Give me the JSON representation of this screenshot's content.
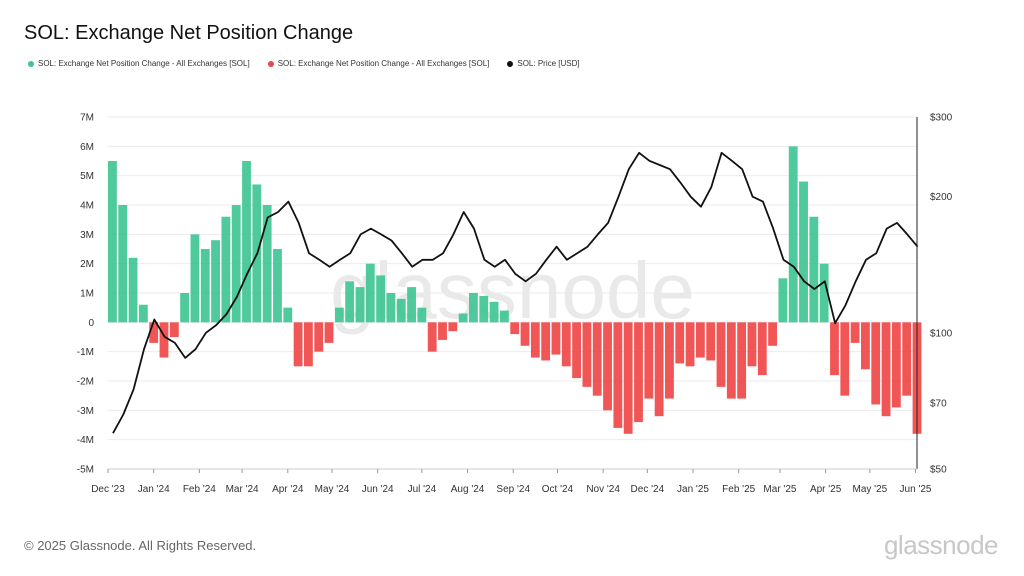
{
  "title": "SOL: Exchange Net Position Change",
  "legend": [
    {
      "label": "SOL: Exchange Net Position Change - All Exchanges [SOL]",
      "color": "#3cc491"
    },
    {
      "label": "SOL: Exchange Net Position Change - All Exchanges [SOL]",
      "color": "#ef4444"
    },
    {
      "label": "SOL: Price [USD]",
      "color": "#111111"
    }
  ],
  "footer": {
    "copyright": "© 2025 Glassnode. All Rights Reserved.",
    "logo": "glassnode"
  },
  "watermark": "glassnode",
  "colors": {
    "positive": "#3cc491",
    "negative": "#ef4444",
    "price": "#111111",
    "grid": "#ebebeb"
  },
  "chart_data": {
    "type": "bar",
    "title": "SOL: Exchange Net Position Change",
    "x_tick_labels": [
      "Dec '23",
      "Jan '24",
      "Feb '24",
      "Mar '24",
      "Apr '24",
      "May '24",
      "Jun '24",
      "Jul '24",
      "Aug '24",
      "Sep '24",
      "Oct '24",
      "Nov '24",
      "Dec '24",
      "Jan '25",
      "Feb '25",
      "Mar '25",
      "Apr '25",
      "May '25",
      "Jun '25"
    ],
    "x_range": [
      "2023-12-01",
      "2025-06-02"
    ],
    "y_left": {
      "ticks": [
        "7M",
        "6M",
        "5M",
        "4M",
        "3M",
        "2M",
        "1M",
        "0",
        "-1M",
        "-2M",
        "-3M",
        "-4M",
        "-5M"
      ],
      "ylim": [
        -5,
        7
      ],
      "unit": "M SOL"
    },
    "y_right": {
      "ticks": [
        "$300",
        "$200",
        "$100",
        "$70",
        "$50"
      ],
      "tick_values": [
        300,
        200,
        100,
        70,
        50
      ],
      "scale": "log",
      "ylim": [
        50,
        300
      ]
    },
    "series": [
      {
        "name": "SOL: Exchange Net Position Change - All Exchanges [SOL]",
        "kind": "bar",
        "unit": "M SOL",
        "x": [
          "2023-12-01",
          "2023-12-08",
          "2023-12-15",
          "2023-12-22",
          "2023-12-29",
          "2024-01-05",
          "2024-01-12",
          "2024-01-19",
          "2024-01-26",
          "2024-02-02",
          "2024-02-09",
          "2024-02-16",
          "2024-02-23",
          "2024-03-01",
          "2024-03-08",
          "2024-03-15",
          "2024-03-22",
          "2024-03-29",
          "2024-04-05",
          "2024-04-12",
          "2024-04-19",
          "2024-04-26",
          "2024-05-03",
          "2024-05-10",
          "2024-05-17",
          "2024-05-24",
          "2024-05-31",
          "2024-06-07",
          "2024-06-14",
          "2024-06-21",
          "2024-06-28",
          "2024-07-05",
          "2024-07-12",
          "2024-07-19",
          "2024-07-26",
          "2024-08-02",
          "2024-08-09",
          "2024-08-16",
          "2024-08-23",
          "2024-08-30",
          "2024-09-06",
          "2024-09-13",
          "2024-09-20",
          "2024-09-27",
          "2024-10-04",
          "2024-10-11",
          "2024-10-18",
          "2024-10-25",
          "2024-11-01",
          "2024-11-08",
          "2024-11-15",
          "2024-11-22",
          "2024-11-29",
          "2024-12-06",
          "2024-12-13",
          "2024-12-20",
          "2024-12-27",
          "2025-01-03",
          "2025-01-10",
          "2025-01-17",
          "2025-01-24",
          "2025-01-31",
          "2025-02-07",
          "2025-02-14",
          "2025-02-21",
          "2025-02-28",
          "2025-03-07",
          "2025-03-14",
          "2025-03-21",
          "2025-03-28",
          "2025-04-04",
          "2025-04-11",
          "2025-04-18",
          "2025-04-25",
          "2025-05-02",
          "2025-05-09",
          "2025-05-16",
          "2025-05-23",
          "2025-05-30"
        ],
        "values": [
          5.5,
          4.0,
          2.2,
          0.6,
          -0.7,
          -1.2,
          -0.5,
          1.0,
          3.0,
          2.5,
          2.8,
          3.6,
          4.0,
          5.5,
          4.7,
          4.0,
          2.5,
          0.5,
          -1.5,
          -1.5,
          -1.0,
          -0.7,
          0.5,
          1.4,
          1.2,
          2.0,
          1.6,
          1.0,
          0.8,
          1.2,
          0.5,
          -1.0,
          -0.6,
          -0.3,
          0.3,
          1.0,
          0.9,
          0.7,
          0.4,
          -0.4,
          -0.8,
          -1.2,
          -1.3,
          -1.1,
          -1.5,
          -1.9,
          -2.2,
          -2.5,
          -3.0,
          -3.6,
          -3.8,
          -3.4,
          -2.6,
          -3.2,
          -2.6,
          -1.4,
          -1.5,
          -1.2,
          -1.3,
          -2.2,
          -2.6,
          -2.6,
          -1.5,
          -1.8,
          -0.8,
          1.5,
          6.0,
          4.8,
          3.6,
          2.0,
          -1.8,
          -2.5,
          -0.7,
          -1.6,
          -2.8,
          -3.2,
          -2.9,
          -2.5,
          -3.8
        ]
      },
      {
        "name": "SOL: Price [USD]",
        "kind": "line",
        "axis": "right",
        "unit": "USD",
        "x": [
          "2023-12-01",
          "2023-12-08",
          "2023-12-15",
          "2023-12-22",
          "2023-12-29",
          "2024-01-05",
          "2024-01-12",
          "2024-01-19",
          "2024-01-26",
          "2024-02-02",
          "2024-02-09",
          "2024-02-16",
          "2024-02-23",
          "2024-03-01",
          "2024-03-08",
          "2024-03-15",
          "2024-03-22",
          "2024-03-29",
          "2024-04-05",
          "2024-04-12",
          "2024-04-19",
          "2024-04-26",
          "2024-05-03",
          "2024-05-10",
          "2024-05-17",
          "2024-05-24",
          "2024-05-31",
          "2024-06-07",
          "2024-06-14",
          "2024-06-21",
          "2024-06-28",
          "2024-07-05",
          "2024-07-12",
          "2024-07-19",
          "2024-07-26",
          "2024-08-02",
          "2024-08-09",
          "2024-08-16",
          "2024-08-23",
          "2024-08-30",
          "2024-09-06",
          "2024-09-13",
          "2024-09-20",
          "2024-09-27",
          "2024-10-04",
          "2024-10-11",
          "2024-10-18",
          "2024-10-25",
          "2024-11-01",
          "2024-11-08",
          "2024-11-15",
          "2024-11-22",
          "2024-11-29",
          "2024-12-06",
          "2024-12-13",
          "2024-12-20",
          "2024-12-27",
          "2025-01-03",
          "2025-01-10",
          "2025-01-17",
          "2025-01-24",
          "2025-01-31",
          "2025-02-07",
          "2025-02-14",
          "2025-02-21",
          "2025-02-28",
          "2025-03-07",
          "2025-03-14",
          "2025-03-21",
          "2025-03-28",
          "2025-04-04",
          "2025-04-11",
          "2025-04-18",
          "2025-04-25",
          "2025-05-02",
          "2025-05-09",
          "2025-05-16",
          "2025-05-23",
          "2025-05-30"
        ],
        "values": [
          60,
          66,
          75,
          92,
          107,
          98,
          95,
          88,
          92,
          100,
          104,
          110,
          120,
          135,
          150,
          180,
          185,
          195,
          175,
          150,
          145,
          140,
          145,
          150,
          165,
          170,
          165,
          160,
          150,
          140,
          145,
          145,
          150,
          165,
          185,
          170,
          145,
          140,
          145,
          135,
          130,
          135,
          145,
          155,
          145,
          150,
          155,
          165,
          175,
          200,
          230,
          250,
          240,
          235,
          230,
          215,
          200,
          190,
          210,
          250,
          240,
          230,
          200,
          195,
          170,
          145,
          140,
          130,
          125,
          130,
          105,
          115,
          130,
          145,
          150,
          170,
          175,
          165,
          155
        ]
      }
    ],
    "legend_position": "top-left",
    "grid": true
  }
}
